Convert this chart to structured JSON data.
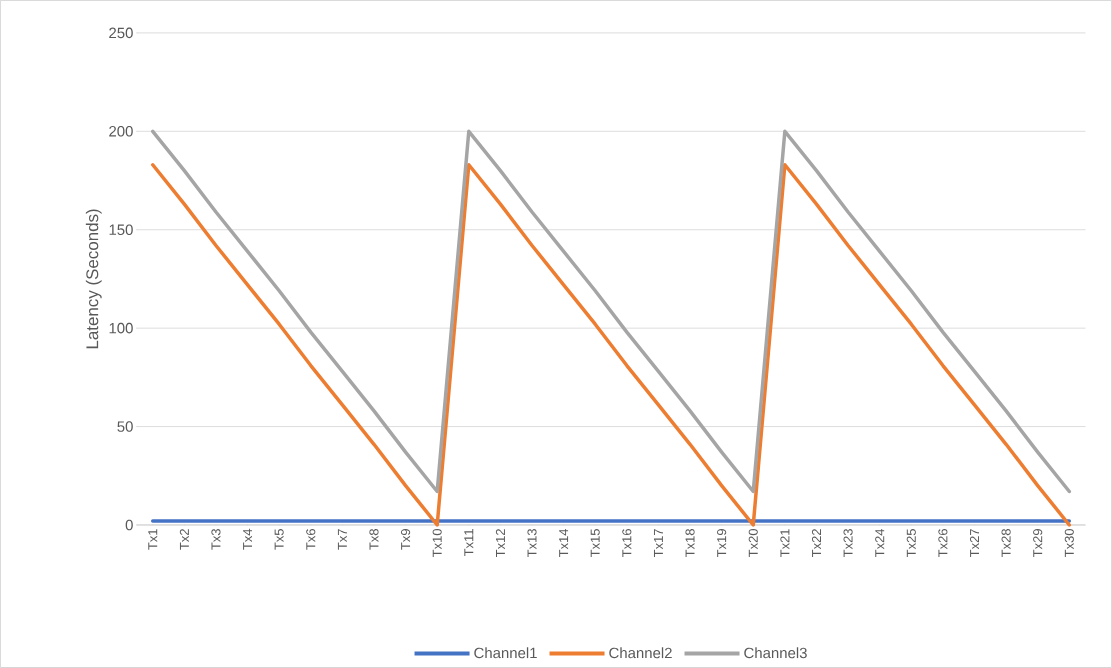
{
  "chart_data": {
    "type": "line",
    "ylabel": "Latency (Seconds)",
    "categories": [
      "Tx1",
      "Tx2",
      "Tx3",
      "Tx4",
      "Tx5",
      "Tx6",
      "Tx7",
      "Tx8",
      "Tx9",
      "Tx10",
      "Tx11",
      "Tx12",
      "Tx13",
      "Tx14",
      "Tx15",
      "Tx16",
      "Tx17",
      "Tx18",
      "Tx19",
      "Tx20",
      "Tx21",
      "Tx22",
      "Tx23",
      "Tx24",
      "Tx25",
      "Tx26",
      "Tx27",
      "Tx28",
      "Tx29",
      "Tx30"
    ],
    "series": [
      {
        "name": "Channel1",
        "color": "#4472c4",
        "values": [
          2,
          2,
          2,
          2,
          2,
          2,
          2,
          2,
          2,
          2,
          2,
          2,
          2,
          2,
          2,
          2,
          2,
          2,
          2,
          2,
          2,
          2,
          2,
          2,
          2,
          2,
          2,
          2,
          2,
          2
        ]
      },
      {
        "name": "Channel2",
        "color": "#ed7d31",
        "values": [
          183,
          163,
          142,
          122,
          102,
          81,
          61,
          41,
          20,
          0,
          183,
          163,
          142,
          122,
          102,
          81,
          61,
          41,
          20,
          0,
          183,
          163,
          142,
          122,
          102,
          81,
          61,
          41,
          20,
          0
        ]
      },
      {
        "name": "Channel3",
        "color": "#a5a5a5",
        "values": [
          200,
          180,
          159,
          139,
          119,
          98,
          78,
          58,
          37,
          17,
          200,
          180,
          159,
          139,
          119,
          98,
          78,
          58,
          37,
          17,
          200,
          180,
          159,
          139,
          119,
          98,
          78,
          58,
          37,
          17
        ]
      }
    ],
    "ylim": [
      0,
      250
    ],
    "yticks": [
      0,
      50,
      100,
      150,
      200,
      250
    ],
    "grid": "y",
    "legend": "bottom",
    "marker": "none",
    "line_style": "solid"
  }
}
